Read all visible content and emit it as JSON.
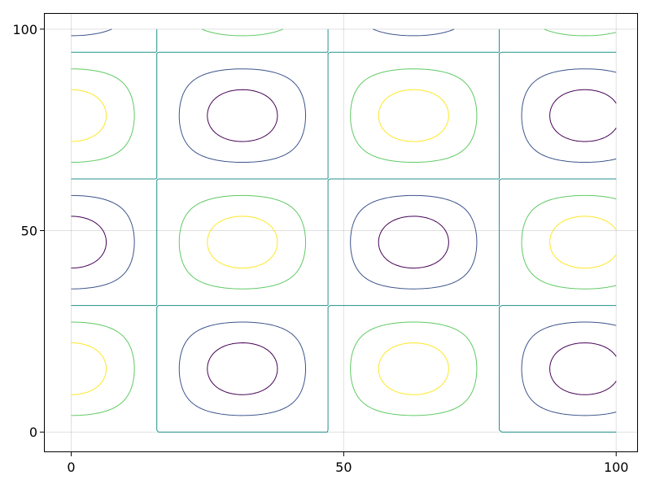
{
  "chart_data": {
    "type": "contour",
    "title": "",
    "xlabel": "",
    "ylabel": "",
    "xlim": [
      -5,
      104
    ],
    "ylim": [
      -5,
      104
    ],
    "data_extent": {
      "x": [
        0,
        100
      ],
      "y": [
        0,
        100
      ]
    },
    "function": "cos(x/10) * sin(y/10)",
    "x_ticks": [
      {
        "value": 0,
        "label": "0"
      },
      {
        "value": 50,
        "label": "50"
      },
      {
        "value": 100,
        "label": "100"
      }
    ],
    "y_ticks": [
      {
        "value": 0,
        "label": "0"
      },
      {
        "value": 50,
        "label": "50"
      },
      {
        "value": 100,
        "label": "100"
      }
    ],
    "grid": true,
    "levels": [
      {
        "value": -0.8,
        "color": "#440154"
      },
      {
        "value": -0.4,
        "color": "#3b528b"
      },
      {
        "value": 0.0,
        "color": "#21918c"
      },
      {
        "value": 0.4,
        "color": "#5ec962"
      },
      {
        "value": 0.8,
        "color": "#fde725"
      }
    ]
  }
}
